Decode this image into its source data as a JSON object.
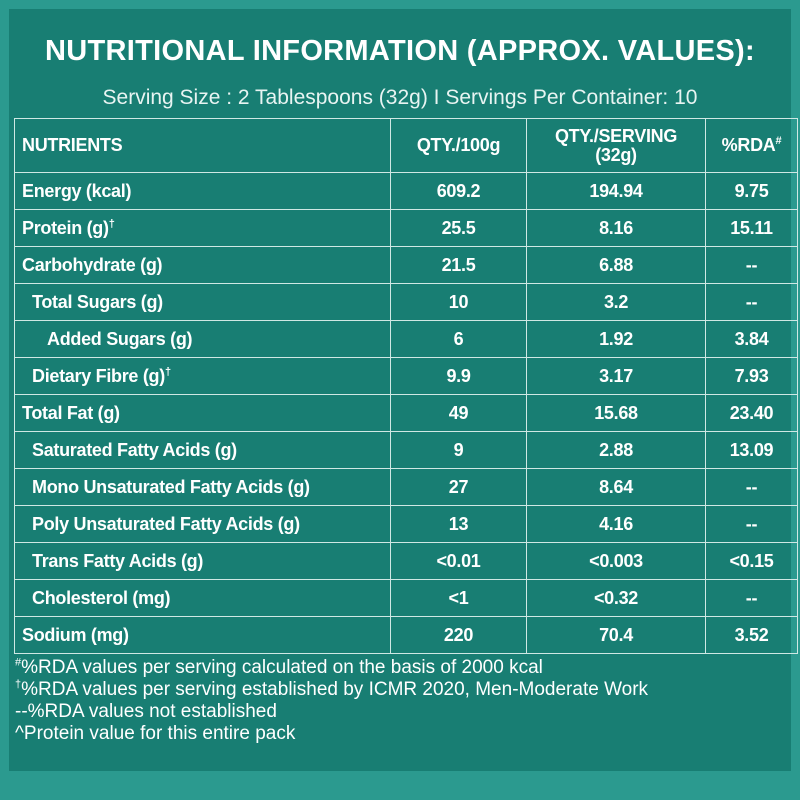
{
  "title": "NUTRITIONAL INFORMATION (APPROX. VALUES):",
  "serving": "Serving Size : 2 Tablespoons (32g) I Servings Per Container: 10",
  "headers": {
    "nutrients": "NUTRIENTS",
    "qty100": "QTY./100g",
    "qtyserving_line1": "QTY./SERVING",
    "qtyserving_line2": "(32g)",
    "rda": "%RDA",
    "rda_mark": "#"
  },
  "rows": [
    {
      "name": "Energy (kcal)",
      "mark": "",
      "per100": "609.2",
      "serving": "194.94",
      "rda": "9.75"
    },
    {
      "name": "Protein (g)",
      "mark": "†",
      "per100": "25.5",
      "serving": "8.16",
      "rda": "15.11"
    },
    {
      "name": "Carbohydrate (g)",
      "mark": "",
      "per100": "21.5",
      "serving": "6.88",
      "rda": "--"
    },
    {
      "name": "Total Sugars (g)",
      "mark": "",
      "per100": "10",
      "serving": "3.2",
      "rda": "--"
    },
    {
      "name": "Added Sugars (g)",
      "mark": "",
      "per100": "6",
      "serving": "1.92",
      "rda": "3.84"
    },
    {
      "name": "Dietary Fibre (g)",
      "mark": "†",
      "per100": "9.9",
      "serving": "3.17",
      "rda": "7.93"
    },
    {
      "name": "Total Fat (g)",
      "mark": "",
      "per100": "49",
      "serving": "15.68",
      "rda": "23.40"
    },
    {
      "name": "Saturated Fatty Acids (g)",
      "mark": "",
      "per100": "9",
      "serving": "2.88",
      "rda": "13.09"
    },
    {
      "name": "Mono Unsaturated Fatty Acids (g)",
      "mark": "",
      "per100": "27",
      "serving": "8.64",
      "rda": "--"
    },
    {
      "name": "Poly Unsaturated Fatty Acids (g)",
      "mark": "",
      "per100": "13",
      "serving": "4.16",
      "rda": "--"
    },
    {
      "name": "Trans Fatty Acids (g)",
      "mark": "",
      "per100": "<0.01",
      "serving": "<0.003",
      "rda": "<0.15"
    },
    {
      "name": "Cholesterol (mg)",
      "mark": "",
      "per100": "<1",
      "serving": "<0.32",
      "rda": "--"
    },
    {
      "name": "Sodium (mg)",
      "mark": "",
      "per100": "220",
      "serving": "70.4",
      "rda": "3.52"
    }
  ],
  "footnotes": [
    {
      "mark": "#",
      "text": "%RDA values per serving calculated on the basis of 2000 kcal"
    },
    {
      "mark": "†",
      "text": "%RDA values per serving established by ICMR 2020, Men-Moderate Work"
    },
    {
      "mark": "",
      "text": "--%RDA values not established"
    },
    {
      "mark": "",
      "text": "^Protein value for this entire pack"
    }
  ]
}
